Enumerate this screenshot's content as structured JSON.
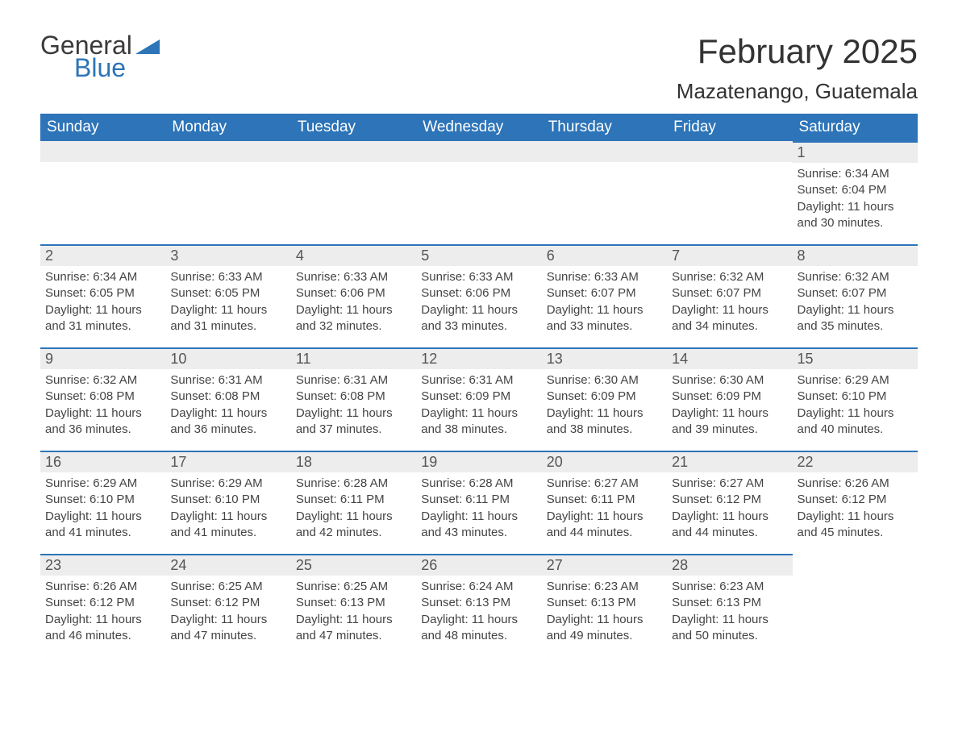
{
  "logo": {
    "general": "General",
    "blue": "Blue"
  },
  "title": "February 2025",
  "location": "Mazatenango, Guatemala",
  "colors": {
    "header_bg": "#2d74b8",
    "header_text": "#ffffff",
    "daynum_bg": "#ededed",
    "daynum_border": "#2d74b8",
    "body_text": "#444444",
    "page_bg": "#ffffff",
    "title_text": "#333333"
  },
  "weekdays": [
    "Sunday",
    "Monday",
    "Tuesday",
    "Wednesday",
    "Thursday",
    "Friday",
    "Saturday"
  ],
  "weeks": [
    [
      null,
      null,
      null,
      null,
      null,
      null,
      {
        "n": "1",
        "sunrise": "Sunrise: 6:34 AM",
        "sunset": "Sunset: 6:04 PM",
        "dlA": "Daylight: 11 hours",
        "dlB": "and 30 minutes."
      }
    ],
    [
      {
        "n": "2",
        "sunrise": "Sunrise: 6:34 AM",
        "sunset": "Sunset: 6:05 PM",
        "dlA": "Daylight: 11 hours",
        "dlB": "and 31 minutes."
      },
      {
        "n": "3",
        "sunrise": "Sunrise: 6:33 AM",
        "sunset": "Sunset: 6:05 PM",
        "dlA": "Daylight: 11 hours",
        "dlB": "and 31 minutes."
      },
      {
        "n": "4",
        "sunrise": "Sunrise: 6:33 AM",
        "sunset": "Sunset: 6:06 PM",
        "dlA": "Daylight: 11 hours",
        "dlB": "and 32 minutes."
      },
      {
        "n": "5",
        "sunrise": "Sunrise: 6:33 AM",
        "sunset": "Sunset: 6:06 PM",
        "dlA": "Daylight: 11 hours",
        "dlB": "and 33 minutes."
      },
      {
        "n": "6",
        "sunrise": "Sunrise: 6:33 AM",
        "sunset": "Sunset: 6:07 PM",
        "dlA": "Daylight: 11 hours",
        "dlB": "and 33 minutes."
      },
      {
        "n": "7",
        "sunrise": "Sunrise: 6:32 AM",
        "sunset": "Sunset: 6:07 PM",
        "dlA": "Daylight: 11 hours",
        "dlB": "and 34 minutes."
      },
      {
        "n": "8",
        "sunrise": "Sunrise: 6:32 AM",
        "sunset": "Sunset: 6:07 PM",
        "dlA": "Daylight: 11 hours",
        "dlB": "and 35 minutes."
      }
    ],
    [
      {
        "n": "9",
        "sunrise": "Sunrise: 6:32 AM",
        "sunset": "Sunset: 6:08 PM",
        "dlA": "Daylight: 11 hours",
        "dlB": "and 36 minutes."
      },
      {
        "n": "10",
        "sunrise": "Sunrise: 6:31 AM",
        "sunset": "Sunset: 6:08 PM",
        "dlA": "Daylight: 11 hours",
        "dlB": "and 36 minutes."
      },
      {
        "n": "11",
        "sunrise": "Sunrise: 6:31 AM",
        "sunset": "Sunset: 6:08 PM",
        "dlA": "Daylight: 11 hours",
        "dlB": "and 37 minutes."
      },
      {
        "n": "12",
        "sunrise": "Sunrise: 6:31 AM",
        "sunset": "Sunset: 6:09 PM",
        "dlA": "Daylight: 11 hours",
        "dlB": "and 38 minutes."
      },
      {
        "n": "13",
        "sunrise": "Sunrise: 6:30 AM",
        "sunset": "Sunset: 6:09 PM",
        "dlA": "Daylight: 11 hours",
        "dlB": "and 38 minutes."
      },
      {
        "n": "14",
        "sunrise": "Sunrise: 6:30 AM",
        "sunset": "Sunset: 6:09 PM",
        "dlA": "Daylight: 11 hours",
        "dlB": "and 39 minutes."
      },
      {
        "n": "15",
        "sunrise": "Sunrise: 6:29 AM",
        "sunset": "Sunset: 6:10 PM",
        "dlA": "Daylight: 11 hours",
        "dlB": "and 40 minutes."
      }
    ],
    [
      {
        "n": "16",
        "sunrise": "Sunrise: 6:29 AM",
        "sunset": "Sunset: 6:10 PM",
        "dlA": "Daylight: 11 hours",
        "dlB": "and 41 minutes."
      },
      {
        "n": "17",
        "sunrise": "Sunrise: 6:29 AM",
        "sunset": "Sunset: 6:10 PM",
        "dlA": "Daylight: 11 hours",
        "dlB": "and 41 minutes."
      },
      {
        "n": "18",
        "sunrise": "Sunrise: 6:28 AM",
        "sunset": "Sunset: 6:11 PM",
        "dlA": "Daylight: 11 hours",
        "dlB": "and 42 minutes."
      },
      {
        "n": "19",
        "sunrise": "Sunrise: 6:28 AM",
        "sunset": "Sunset: 6:11 PM",
        "dlA": "Daylight: 11 hours",
        "dlB": "and 43 minutes."
      },
      {
        "n": "20",
        "sunrise": "Sunrise: 6:27 AM",
        "sunset": "Sunset: 6:11 PM",
        "dlA": "Daylight: 11 hours",
        "dlB": "and 44 minutes."
      },
      {
        "n": "21",
        "sunrise": "Sunrise: 6:27 AM",
        "sunset": "Sunset: 6:12 PM",
        "dlA": "Daylight: 11 hours",
        "dlB": "and 44 minutes."
      },
      {
        "n": "22",
        "sunrise": "Sunrise: 6:26 AM",
        "sunset": "Sunset: 6:12 PM",
        "dlA": "Daylight: 11 hours",
        "dlB": "and 45 minutes."
      }
    ],
    [
      {
        "n": "23",
        "sunrise": "Sunrise: 6:26 AM",
        "sunset": "Sunset: 6:12 PM",
        "dlA": "Daylight: 11 hours",
        "dlB": "and 46 minutes."
      },
      {
        "n": "24",
        "sunrise": "Sunrise: 6:25 AM",
        "sunset": "Sunset: 6:12 PM",
        "dlA": "Daylight: 11 hours",
        "dlB": "and 47 minutes."
      },
      {
        "n": "25",
        "sunrise": "Sunrise: 6:25 AM",
        "sunset": "Sunset: 6:13 PM",
        "dlA": "Daylight: 11 hours",
        "dlB": "and 47 minutes."
      },
      {
        "n": "26",
        "sunrise": "Sunrise: 6:24 AM",
        "sunset": "Sunset: 6:13 PM",
        "dlA": "Daylight: 11 hours",
        "dlB": "and 48 minutes."
      },
      {
        "n": "27",
        "sunrise": "Sunrise: 6:23 AM",
        "sunset": "Sunset: 6:13 PM",
        "dlA": "Daylight: 11 hours",
        "dlB": "and 49 minutes."
      },
      {
        "n": "28",
        "sunrise": "Sunrise: 6:23 AM",
        "sunset": "Sunset: 6:13 PM",
        "dlA": "Daylight: 11 hours",
        "dlB": "and 50 minutes."
      },
      null
    ]
  ]
}
